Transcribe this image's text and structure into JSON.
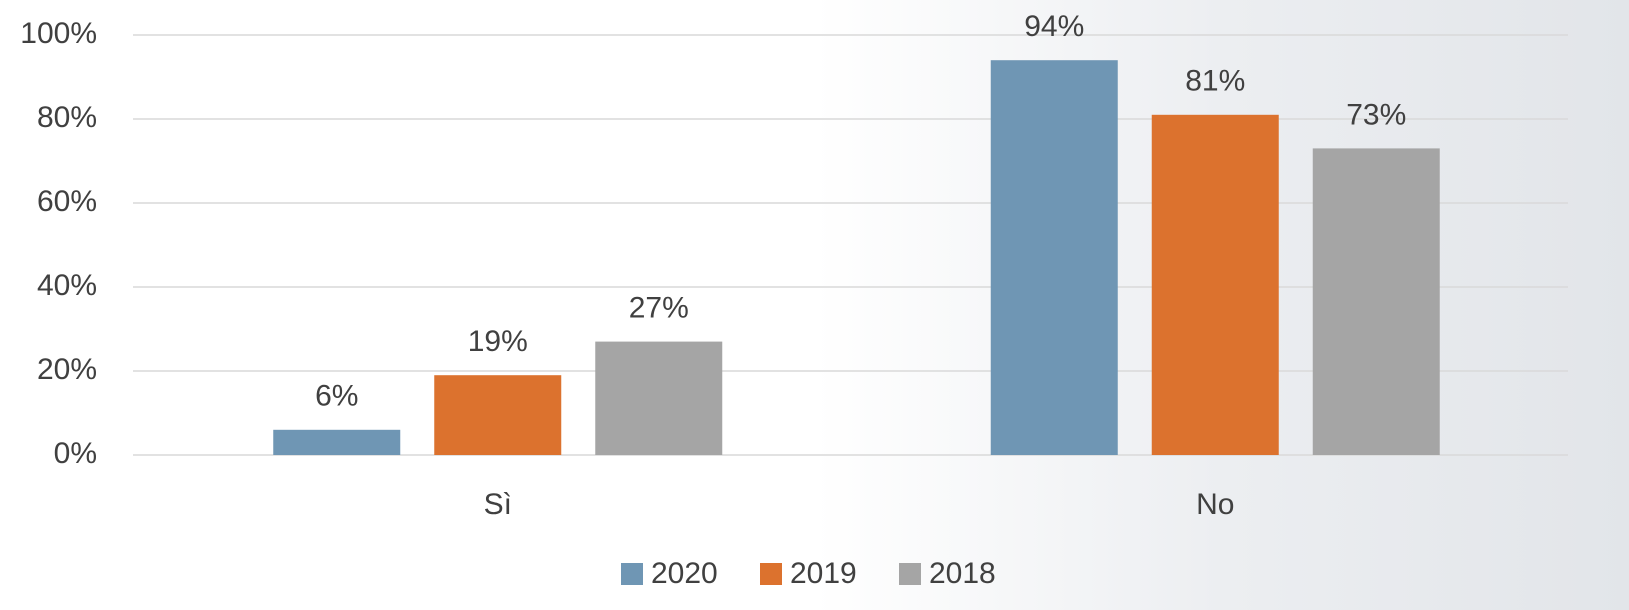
{
  "chart_data": {
    "type": "bar",
    "categories": [
      "Sì",
      "No"
    ],
    "series": [
      {
        "name": "2020",
        "color": "#6f96b4",
        "values": [
          6,
          94
        ],
        "value_labels": [
          "6%",
          "94%"
        ]
      },
      {
        "name": "2019",
        "color": "#dc722e",
        "values": [
          19,
          81
        ],
        "value_labels": [
          "19%",
          "81%"
        ]
      },
      {
        "name": "2018",
        "color": "#a5a5a5",
        "values": [
          27,
          73
        ],
        "value_labels": [
          "27%",
          "73%"
        ]
      }
    ],
    "ylim": [
      0,
      100
    ],
    "yticks": [
      {
        "value": 0,
        "label": "0%"
      },
      {
        "value": 20,
        "label": "20%"
      },
      {
        "value": 40,
        "label": "40%"
      },
      {
        "value": 60,
        "label": "60%"
      },
      {
        "value": 80,
        "label": "80%"
      },
      {
        "value": 100,
        "label": "100%"
      }
    ],
    "grid": true,
    "legend": "bottom"
  }
}
